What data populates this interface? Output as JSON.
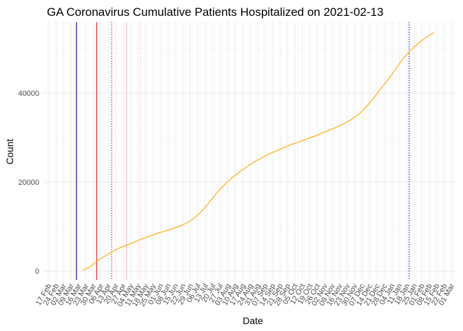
{
  "chart_data": {
    "type": "line",
    "title": "GA Coronavirus Cumulative Patients Hospitalized on 2021-02-13",
    "xlabel": "Date",
    "ylabel": "Count",
    "x_axis": {
      "type": "date",
      "range": [
        "2020-02-12",
        "2021-03-05"
      ]
    },
    "y_axis": {
      "range": [
        -2000,
        56000
      ],
      "ticks": [
        0,
        20000,
        40000
      ]
    },
    "x_ticks": [
      {
        "date": "2020-02-17",
        "label": "17 Feb"
      },
      {
        "date": "2020-02-24",
        "label": "24 Feb"
      },
      {
        "date": "2020-03-02",
        "label": "02 Mar"
      },
      {
        "date": "2020-03-09",
        "label": "09 Mar"
      },
      {
        "date": "2020-03-16",
        "label": "16 Mar"
      },
      {
        "date": "2020-03-23",
        "label": "23 Mar"
      },
      {
        "date": "2020-03-30",
        "label": "30 Mar"
      },
      {
        "date": "2020-04-06",
        "label": "06 Apr"
      },
      {
        "date": "2020-04-13",
        "label": "13 Apr"
      },
      {
        "date": "2020-04-20",
        "label": "20 Apr"
      },
      {
        "date": "2020-04-27",
        "label": "27 Apr"
      },
      {
        "date": "2020-05-04",
        "label": "04 May"
      },
      {
        "date": "2020-05-11",
        "label": "11 May"
      },
      {
        "date": "2020-05-18",
        "label": "18 May"
      },
      {
        "date": "2020-05-25",
        "label": "25 May"
      },
      {
        "date": "2020-06-01",
        "label": "01 Jun"
      },
      {
        "date": "2020-06-08",
        "label": "08 Jun"
      },
      {
        "date": "2020-06-15",
        "label": "15 Jun"
      },
      {
        "date": "2020-06-22",
        "label": "22 Jun"
      },
      {
        "date": "2020-06-29",
        "label": "29 Jun"
      },
      {
        "date": "2020-07-06",
        "label": "06 Jul"
      },
      {
        "date": "2020-07-13",
        "label": "13 Jul"
      },
      {
        "date": "2020-07-20",
        "label": "20 Jul"
      },
      {
        "date": "2020-07-27",
        "label": "27 Jul"
      },
      {
        "date": "2020-08-03",
        "label": "03 Aug"
      },
      {
        "date": "2020-08-10",
        "label": "10 Aug"
      },
      {
        "date": "2020-08-17",
        "label": "17 Aug"
      },
      {
        "date": "2020-08-24",
        "label": "24 Aug"
      },
      {
        "date": "2020-08-31",
        "label": "31 Aug"
      },
      {
        "date": "2020-09-07",
        "label": "07 Sep"
      },
      {
        "date": "2020-09-14",
        "label": "14 Sep"
      },
      {
        "date": "2020-09-21",
        "label": "21 Sep"
      },
      {
        "date": "2020-09-28",
        "label": "28 Sep"
      },
      {
        "date": "2020-10-05",
        "label": "05 Oct"
      },
      {
        "date": "2020-10-12",
        "label": "12 Oct"
      },
      {
        "date": "2020-10-19",
        "label": "19 Oct"
      },
      {
        "date": "2020-10-26",
        "label": "26 Oct"
      },
      {
        "date": "2020-11-02",
        "label": "02 Nov"
      },
      {
        "date": "2020-11-09",
        "label": "09 Nov"
      },
      {
        "date": "2020-11-16",
        "label": "16 Nov"
      },
      {
        "date": "2020-11-23",
        "label": "23 Nov"
      },
      {
        "date": "2020-11-30",
        "label": "30 Nov"
      },
      {
        "date": "2020-12-07",
        "label": "07 Dec"
      },
      {
        "date": "2020-12-14",
        "label": "14 Dec"
      },
      {
        "date": "2020-12-21",
        "label": "21 Dec"
      },
      {
        "date": "2020-12-28",
        "label": "28 Dec"
      },
      {
        "date": "2021-01-04",
        "label": "04 Jan"
      },
      {
        "date": "2021-01-11",
        "label": "11 Jan"
      },
      {
        "date": "2021-01-18",
        "label": "18 Jan"
      },
      {
        "date": "2021-01-25",
        "label": "25 Jan"
      },
      {
        "date": "2021-02-01",
        "label": "01 Feb"
      },
      {
        "date": "2021-02-08",
        "label": "08 Feb"
      },
      {
        "date": "2021-02-15",
        "label": "15 Feb"
      },
      {
        "date": "2021-02-22",
        "label": "22 Feb"
      },
      {
        "date": "2021-03-01",
        "label": "01 Mar"
      }
    ],
    "grid": true,
    "series": [
      {
        "color": "#ffa500",
        "points": [
          {
            "x": "2020-03-20",
            "y": 200
          },
          {
            "x": "2020-03-27",
            "y": 1000
          },
          {
            "x": "2020-04-03",
            "y": 2400
          },
          {
            "x": "2020-04-10",
            "y": 3400
          },
          {
            "x": "2020-04-17",
            "y": 4400
          },
          {
            "x": "2020-04-24",
            "y": 5300
          },
          {
            "x": "2020-05-01",
            "y": 5900
          },
          {
            "x": "2020-05-08",
            "y": 6600
          },
          {
            "x": "2020-05-15",
            "y": 7300
          },
          {
            "x": "2020-05-22",
            "y": 7900
          },
          {
            "x": "2020-05-29",
            "y": 8500
          },
          {
            "x": "2020-06-05",
            "y": 9000
          },
          {
            "x": "2020-06-12",
            "y": 9500
          },
          {
            "x": "2020-06-19",
            "y": 10100
          },
          {
            "x": "2020-06-26",
            "y": 10900
          },
          {
            "x": "2020-07-03",
            "y": 12000
          },
          {
            "x": "2020-07-10",
            "y": 13600
          },
          {
            "x": "2020-07-17",
            "y": 15600
          },
          {
            "x": "2020-07-24",
            "y": 17700
          },
          {
            "x": "2020-07-31",
            "y": 19500
          },
          {
            "x": "2020-08-07",
            "y": 21000
          },
          {
            "x": "2020-08-14",
            "y": 22300
          },
          {
            "x": "2020-08-21",
            "y": 23500
          },
          {
            "x": "2020-08-28",
            "y": 24600
          },
          {
            "x": "2020-09-04",
            "y": 25500
          },
          {
            "x": "2020-09-11",
            "y": 26400
          },
          {
            "x": "2020-09-18",
            "y": 27100
          },
          {
            "x": "2020-09-25",
            "y": 27800
          },
          {
            "x": "2020-10-02",
            "y": 28500
          },
          {
            "x": "2020-10-09",
            "y": 29100
          },
          {
            "x": "2020-10-16",
            "y": 29700
          },
          {
            "x": "2020-10-23",
            "y": 30300
          },
          {
            "x": "2020-10-30",
            "y": 31000
          },
          {
            "x": "2020-11-06",
            "y": 31700
          },
          {
            "x": "2020-11-13",
            "y": 32400
          },
          {
            "x": "2020-11-20",
            "y": 33200
          },
          {
            "x": "2020-11-27",
            "y": 34100
          },
          {
            "x": "2020-12-04",
            "y": 35300
          },
          {
            "x": "2020-12-11",
            "y": 37000
          },
          {
            "x": "2020-12-18",
            "y": 39000
          },
          {
            "x": "2020-12-25",
            "y": 41200
          },
          {
            "x": "2021-01-01",
            "y": 43300
          },
          {
            "x": "2021-01-08",
            "y": 45700
          },
          {
            "x": "2021-01-15",
            "y": 48000
          },
          {
            "x": "2021-01-22",
            "y": 49800
          },
          {
            "x": "2021-01-29",
            "y": 51300
          },
          {
            "x": "2021-02-05",
            "y": 52600
          },
          {
            "x": "2021-02-12",
            "y": 53600
          }
        ]
      }
    ],
    "reference_lines": [
      {
        "x": "2020-03-14",
        "color": "#00008b",
        "style": "solid"
      },
      {
        "x": "2020-04-02",
        "color": "#d7191c",
        "style": "solid"
      },
      {
        "x": "2020-04-16",
        "color": "#b2182b",
        "style": "dotted"
      },
      {
        "x": "2020-04-30",
        "color": "#f4b6c2",
        "style": "solid"
      },
      {
        "x": "2020-05-13",
        "color": "#f4b6c2",
        "style": "dotted"
      },
      {
        "x": "2021-01-20",
        "color": "#0000cd",
        "style": "dotted"
      }
    ]
  }
}
